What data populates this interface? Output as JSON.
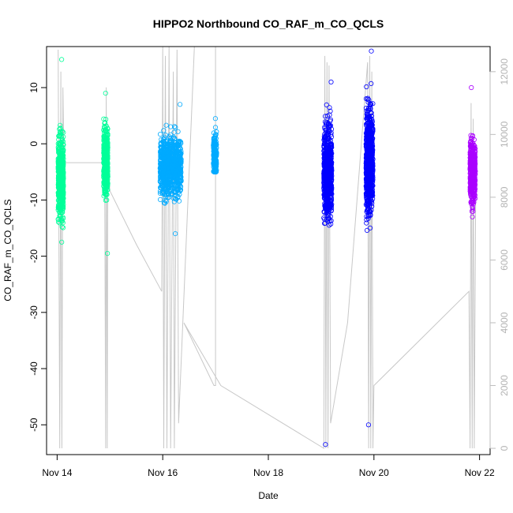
{
  "chart_data": {
    "type": "scatter",
    "title": "HIPPO2 Northbound CO_RAF_m_CO_QCLS",
    "xlabel": "Date",
    "ylabel": "CO_RAF_m_CO_QCLS",
    "x_ticks": [
      "Nov 14",
      "Nov 16",
      "Nov 18",
      "Nov 20",
      "Nov 22"
    ],
    "x_tick_days": [
      14,
      16,
      18,
      20,
      22
    ],
    "xlim": [
      13.8,
      22.2
    ],
    "ylim": [
      -55.3,
      17.3
    ],
    "y_ticks": [
      10,
      0,
      -10,
      -20,
      -30,
      -40,
      -50
    ],
    "y2_ticks": [
      0,
      2000,
      4000,
      6000,
      8000,
      10000,
      12000
    ],
    "y2lim": [
      -200,
      12800
    ],
    "y2_color": "#bebebe",
    "grid": false,
    "series": [
      {
        "color": "#00ff99",
        "day_start": 14.02,
        "day_end": 14.12,
        "center": -6,
        "spread": 3.5,
        "min": -17.5,
        "max": 15,
        "count": 600
      },
      {
        "color": "#00ff99",
        "day_start": 14.88,
        "day_end": 14.96,
        "center": -3,
        "spread": 3.0,
        "min": -19.5,
        "max": 9,
        "count": 400
      },
      {
        "color": "#00aaff",
        "day_start": 15.95,
        "day_end": 16.35,
        "center": -4,
        "spread": 2.5,
        "min": -16,
        "max": 7,
        "count": 900
      },
      {
        "color": "#00aaff",
        "day_start": 16.96,
        "day_end": 17.02,
        "center": -2,
        "spread": 1.8,
        "min": -5,
        "max": 4.5,
        "count": 200
      },
      {
        "color": "#0000ff",
        "day_start": 19.05,
        "day_end": 19.2,
        "center": -5,
        "spread": 4.0,
        "min": -53.5,
        "max": 11,
        "count": 700
      },
      {
        "color": "#0000ff",
        "day_start": 19.85,
        "day_end": 19.98,
        "center": -3,
        "spread": 4.5,
        "min": -50,
        "max": 16.5,
        "count": 800
      },
      {
        "color": "#aa00ff",
        "day_start": 21.82,
        "day_end": 21.92,
        "center": -5,
        "spread": 2.8,
        "min": -13,
        "max": 10,
        "count": 400
      }
    ],
    "altitude_trace": {
      "color": "#c8c8c8",
      "points": [
        [
          14.02,
          12700
        ],
        [
          14.05,
          0
        ],
        [
          14.07,
          12000
        ],
        [
          14.09,
          0
        ],
        [
          14.11,
          11500
        ],
        [
          14.13,
          9100
        ],
        [
          14.9,
          9100
        ],
        [
          14.92,
          0
        ],
        [
          14.93,
          11500
        ],
        [
          14.95,
          0
        ],
        [
          14.96,
          9000
        ],
        [
          15.0,
          8200
        ],
        [
          15.5,
          6500
        ],
        [
          15.98,
          5000
        ],
        [
          16.0,
          12800
        ],
        [
          16.02,
          0
        ],
        [
          16.05,
          12500
        ],
        [
          16.08,
          0
        ],
        [
          16.12,
          12800
        ],
        [
          16.15,
          0
        ],
        [
          16.2,
          12000
        ],
        [
          16.22,
          0
        ],
        [
          16.27,
          12700
        ],
        [
          16.3,
          800
        ],
        [
          16.6,
          12800
        ],
        [
          17.0,
          12800
        ],
        [
          17.0,
          2000
        ],
        [
          16.97,
          2000
        ],
        [
          16.4,
          4000
        ],
        [
          17.1,
          2000
        ],
        [
          19.05,
          0
        ],
        [
          19.07,
          12500
        ],
        [
          19.09,
          0
        ],
        [
          19.11,
          12300
        ],
        [
          19.13,
          0
        ],
        [
          19.15,
          12200
        ],
        [
          19.18,
          800
        ],
        [
          19.5,
          4000
        ],
        [
          19.88,
          12300
        ],
        [
          19.9,
          0
        ],
        [
          19.92,
          12500
        ],
        [
          19.94,
          0
        ],
        [
          19.96,
          12000
        ],
        [
          19.98,
          0
        ],
        [
          20.0,
          2000
        ],
        [
          21.8,
          5000
        ],
        [
          21.82,
          0
        ],
        [
          21.84,
          11000
        ],
        [
          21.86,
          0
        ],
        [
          21.88,
          10500
        ],
        [
          21.9,
          0
        ],
        [
          21.93,
          9000
        ]
      ]
    }
  }
}
